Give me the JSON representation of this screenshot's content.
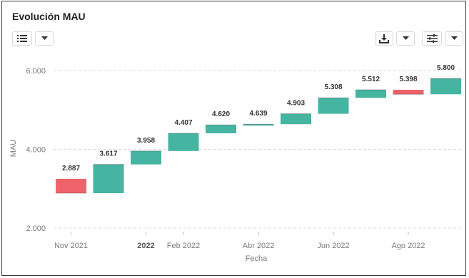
{
  "header": {
    "title": "Evolución MAU"
  },
  "toolbar": {
    "left_icons": [
      "list-icon",
      "chevron-down-icon"
    ],
    "right_icons": [
      "download-icon",
      "chevron-down-icon",
      "sliders-icon",
      "chevron-down-icon"
    ]
  },
  "colors": {
    "increase": "#45b5a2",
    "decrease": "#f0626a",
    "grid": "#d9d9d9",
    "tick_text": "#7a7a7a",
    "border": "#3a3a3a"
  },
  "chart_data": {
    "type": "waterfall",
    "title": "Evolución MAU",
    "xlabel": "Fecha",
    "ylabel": "MAU",
    "ylim": [
      1800,
      6100
    ],
    "yticks": [
      2000,
      4000,
      6000
    ],
    "ytick_labels": [
      "2.000",
      "4.000",
      "6.000"
    ],
    "xticks": [
      {
        "index": 0,
        "label": "Nov 2021",
        "bold": false
      },
      {
        "index": 2,
        "label": "2022",
        "bold": true
      },
      {
        "index": 3,
        "label": "Feb 2022",
        "bold": false
      },
      {
        "index": 5,
        "label": "Abr 2022",
        "bold": false
      },
      {
        "index": 7,
        "label": "Jun 2022",
        "bold": false
      },
      {
        "index": 9,
        "label": "Ago 2022",
        "bold": false
      }
    ],
    "grid": true,
    "bars": [
      {
        "start": 3250,
        "end": 2887,
        "label": "2.887"
      },
      {
        "start": 2887,
        "end": 3617,
        "label": "3.617"
      },
      {
        "start": 3617,
        "end": 3958,
        "label": "3.958"
      },
      {
        "start": 3958,
        "end": 4407,
        "label": "4.407"
      },
      {
        "start": 4407,
        "end": 4620,
        "label": "4.620"
      },
      {
        "start": 4620,
        "end": 4639,
        "label": "4.639"
      },
      {
        "start": 4639,
        "end": 4903,
        "label": "4.903"
      },
      {
        "start": 4903,
        "end": 5308,
        "label": "5.308"
      },
      {
        "start": 5308,
        "end": 5512,
        "label": "5.512"
      },
      {
        "start": 5512,
        "end": 5398,
        "label": "5.398"
      },
      {
        "start": 5398,
        "end": 5800,
        "label": "5.800"
      }
    ]
  }
}
